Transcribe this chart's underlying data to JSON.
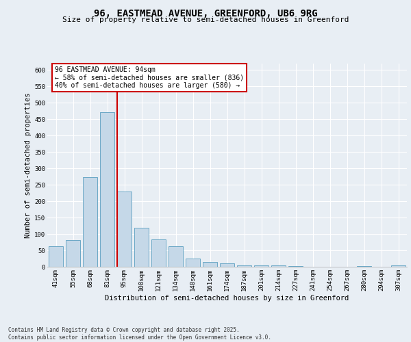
{
  "title": "96, EASTMEAD AVENUE, GREENFORD, UB6 9RG",
  "subtitle": "Size of property relative to semi-detached houses in Greenford",
  "xlabel": "Distribution of semi-detached houses by size in Greenford",
  "ylabel": "Number of semi-detached properties",
  "categories": [
    "41sqm",
    "55sqm",
    "68sqm",
    "81sqm",
    "95sqm",
    "108sqm",
    "121sqm",
    "134sqm",
    "148sqm",
    "161sqm",
    "174sqm",
    "187sqm",
    "201sqm",
    "214sqm",
    "227sqm",
    "241sqm",
    "254sqm",
    "267sqm",
    "280sqm",
    "294sqm",
    "307sqm"
  ],
  "values": [
    63,
    82,
    273,
    470,
    230,
    118,
    83,
    63,
    25,
    15,
    10,
    5,
    4,
    4,
    2,
    0,
    0,
    0,
    2,
    0,
    4
  ],
  "bar_color": "#c5d8e8",
  "bar_edge_color": "#5a9fc0",
  "highlight_index": 4,
  "highlight_line_color": "#cc0000",
  "annotation_text": "96 EASTMEAD AVENUE: 94sqm\n← 58% of semi-detached houses are smaller (836)\n40% of semi-detached houses are larger (580) →",
  "annotation_box_color": "#ffffff",
  "annotation_box_edge_color": "#cc0000",
  "ylim": [
    0,
    620
  ],
  "yticks": [
    0,
    50,
    100,
    150,
    200,
    250,
    300,
    350,
    400,
    450,
    500,
    550,
    600
  ],
  "background_color": "#e8eef4",
  "footnote": "Contains HM Land Registry data © Crown copyright and database right 2025.\nContains public sector information licensed under the Open Government Licence v3.0.",
  "title_fontsize": 10,
  "subtitle_fontsize": 8,
  "axis_label_fontsize": 7.5,
  "tick_fontsize": 6.5,
  "annotation_fontsize": 7
}
